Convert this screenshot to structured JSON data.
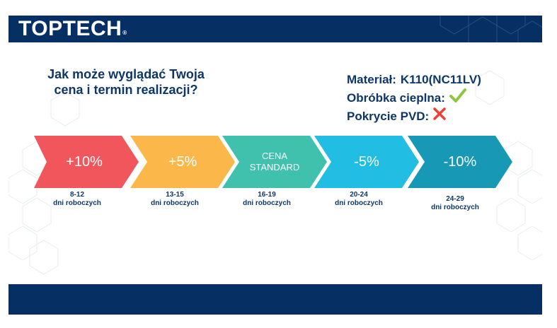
{
  "header": {
    "logo_text": "TOPTECH",
    "logo_mark": "®"
  },
  "question": {
    "line1": "Jak może wyglądać Twoja",
    "line2": "cena i termin realizacji?"
  },
  "specs": {
    "material_label": "Materiał:",
    "material_value": "K110(NC11LV)",
    "heat_label": "Obróbka cieplna:",
    "heat_icon": "checkmark-icon",
    "pvd_label": "Pokrycie PVD:",
    "pvd_icon": "cross-icon"
  },
  "pricing": [
    {
      "label": "+10%",
      "days": "8-12",
      "unit": "dni roboczych",
      "color": "#f0565b"
    },
    {
      "label": "+5%",
      "days": "13-15",
      "unit": "dni roboczych",
      "color": "#fbb749"
    },
    {
      "label_line1": "CENA",
      "label_line2": "STANDARD",
      "days": "16-19",
      "unit": "dni roboczych",
      "color": "#3fc1ad"
    },
    {
      "label": "-5%",
      "days": "20-24",
      "unit": "dni roboczych",
      "color": "#21bde2"
    },
    {
      "label": "-10%",
      "days": "24-29",
      "unit": "dni roboczych",
      "color": "#1798b4"
    }
  ],
  "colors": {
    "brand_navy": "#062f63",
    "text_navy": "#0d3768",
    "check_green": "#8dc63f",
    "cross_red": "#ee4035"
  }
}
